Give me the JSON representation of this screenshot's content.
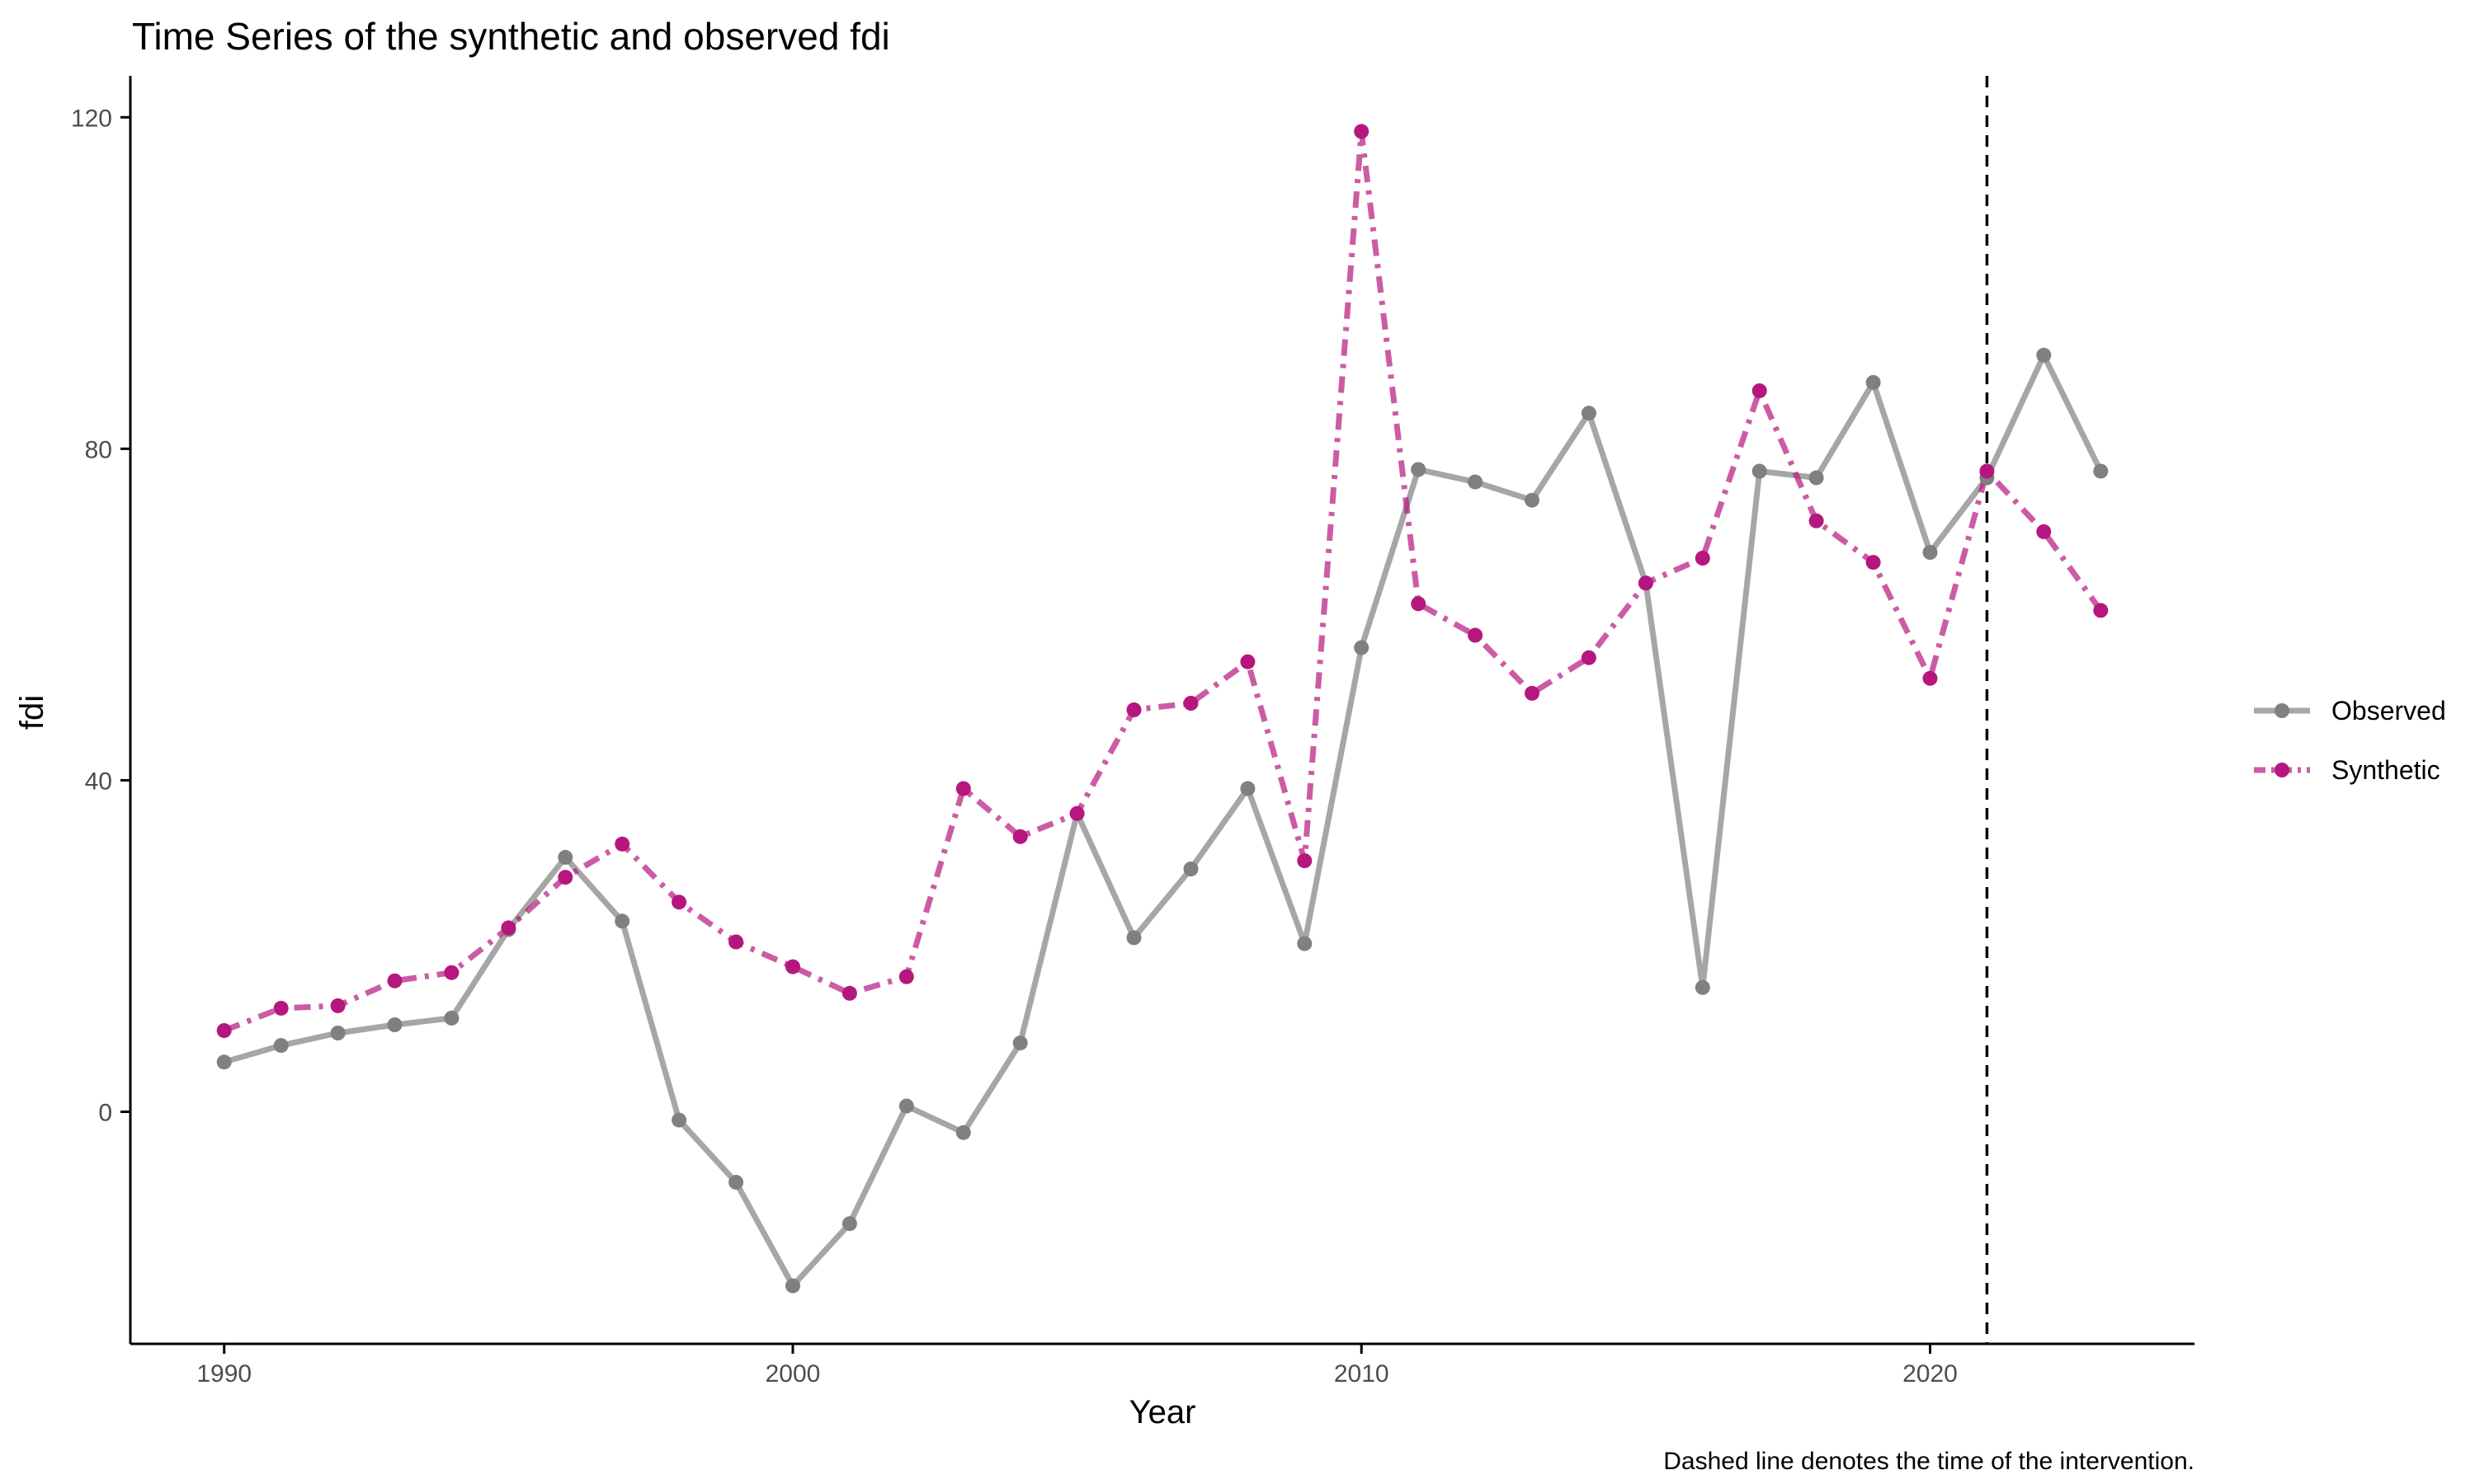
{
  "colors": {
    "observed": "#808080",
    "synthetic": "#B5177E",
    "axis": "#000000",
    "tick_text": "#4d4d4d",
    "intervention_line": "#000000"
  },
  "chart_data": {
    "type": "line",
    "title": "Time Series of the synthetic and observed fdi",
    "xlabel": "Year",
    "ylabel": "fdi",
    "caption": "Dashed line denotes the time of the intervention.",
    "xlim": [
      1988.35,
      2024.65
    ],
    "ylim": [
      -28,
      125
    ],
    "x_ticks": [
      1990,
      2000,
      2010,
      2020
    ],
    "y_ticks": [
      0,
      40,
      80,
      120
    ],
    "x_tick_labels": [
      "1990",
      "2000",
      "2010",
      "2020"
    ],
    "y_tick_labels": [
      "0",
      "40",
      "80",
      "120"
    ],
    "intervention_x": 2021,
    "grid": false,
    "legend_position": "right",
    "x": [
      1990,
      1991,
      1992,
      1993,
      1994,
      1995,
      1996,
      1997,
      1998,
      1999,
      2000,
      2001,
      2002,
      2003,
      2004,
      2005,
      2006,
      2007,
      2008,
      2009,
      2010,
      2011,
      2012,
      2013,
      2014,
      2015,
      2016,
      2017,
      2018,
      2019,
      2020,
      2021,
      2022,
      2023
    ],
    "series": [
      {
        "name": "Observed",
        "line_style": "solid",
        "values": [
          6,
          8,
          9.5,
          10.5,
          11.3,
          22,
          30.7,
          23,
          -1,
          -8.5,
          -21,
          -13.5,
          0.7,
          -2.5,
          8.3,
          36,
          21,
          29.3,
          39,
          20.3,
          56,
          77.5,
          76,
          73.8,
          84.3,
          63.8,
          15,
          77.3,
          76.5,
          88,
          67.5,
          76.5,
          91.3,
          77.3
        ]
      },
      {
        "name": "Synthetic",
        "line_style": "dashdot",
        "values": [
          9.8,
          12.5,
          12.8,
          15.8,
          16.8,
          22.2,
          28.3,
          32.3,
          25.3,
          20.5,
          17.5,
          14.3,
          16.3,
          39,
          33.2,
          36,
          48.5,
          49.3,
          54.3,
          30.3,
          118.3,
          61.3,
          57.5,
          50.5,
          54.8,
          63.8,
          66.8,
          87,
          71.3,
          66.3,
          52.3,
          77.3,
          70,
          60.5
        ]
      }
    ]
  }
}
